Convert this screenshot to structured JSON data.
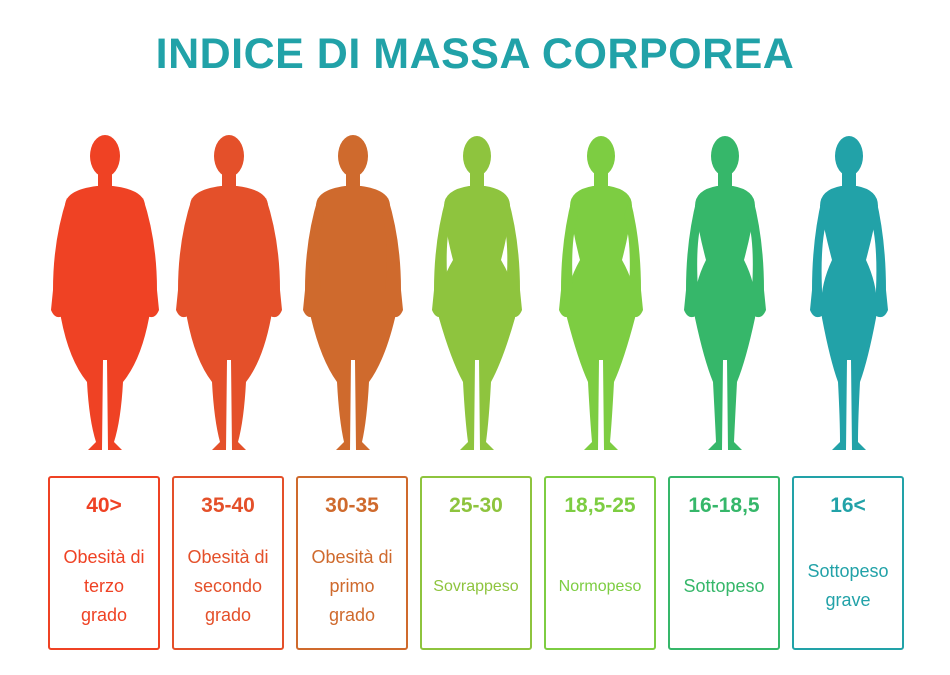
{
  "title": "INDICE DI MASSA CORPOREA",
  "categories": [
    {
      "range": "40>",
      "label": "Obesità di\nterzo\ngrado",
      "color": "#ef4224"
    },
    {
      "range": "35-40",
      "label": "Obesità di\nsecondo\ngrado",
      "color": "#e4502a"
    },
    {
      "range": "30-35",
      "label": "Obesità di\nprimo\ngrado",
      "color": "#cf6a2d"
    },
    {
      "range": "25-30",
      "label": "Sovrappeso",
      "color": "#8ec43e"
    },
    {
      "range": "18,5-25",
      "label": "Normopeso",
      "color": "#7dcd42"
    },
    {
      "range": "16-18,5",
      "label": "Sottopeso",
      "color": "#36b76a"
    },
    {
      "range": "16<",
      "label": "Sottopeso\ngrave",
      "color": "#22a2a8"
    }
  ]
}
